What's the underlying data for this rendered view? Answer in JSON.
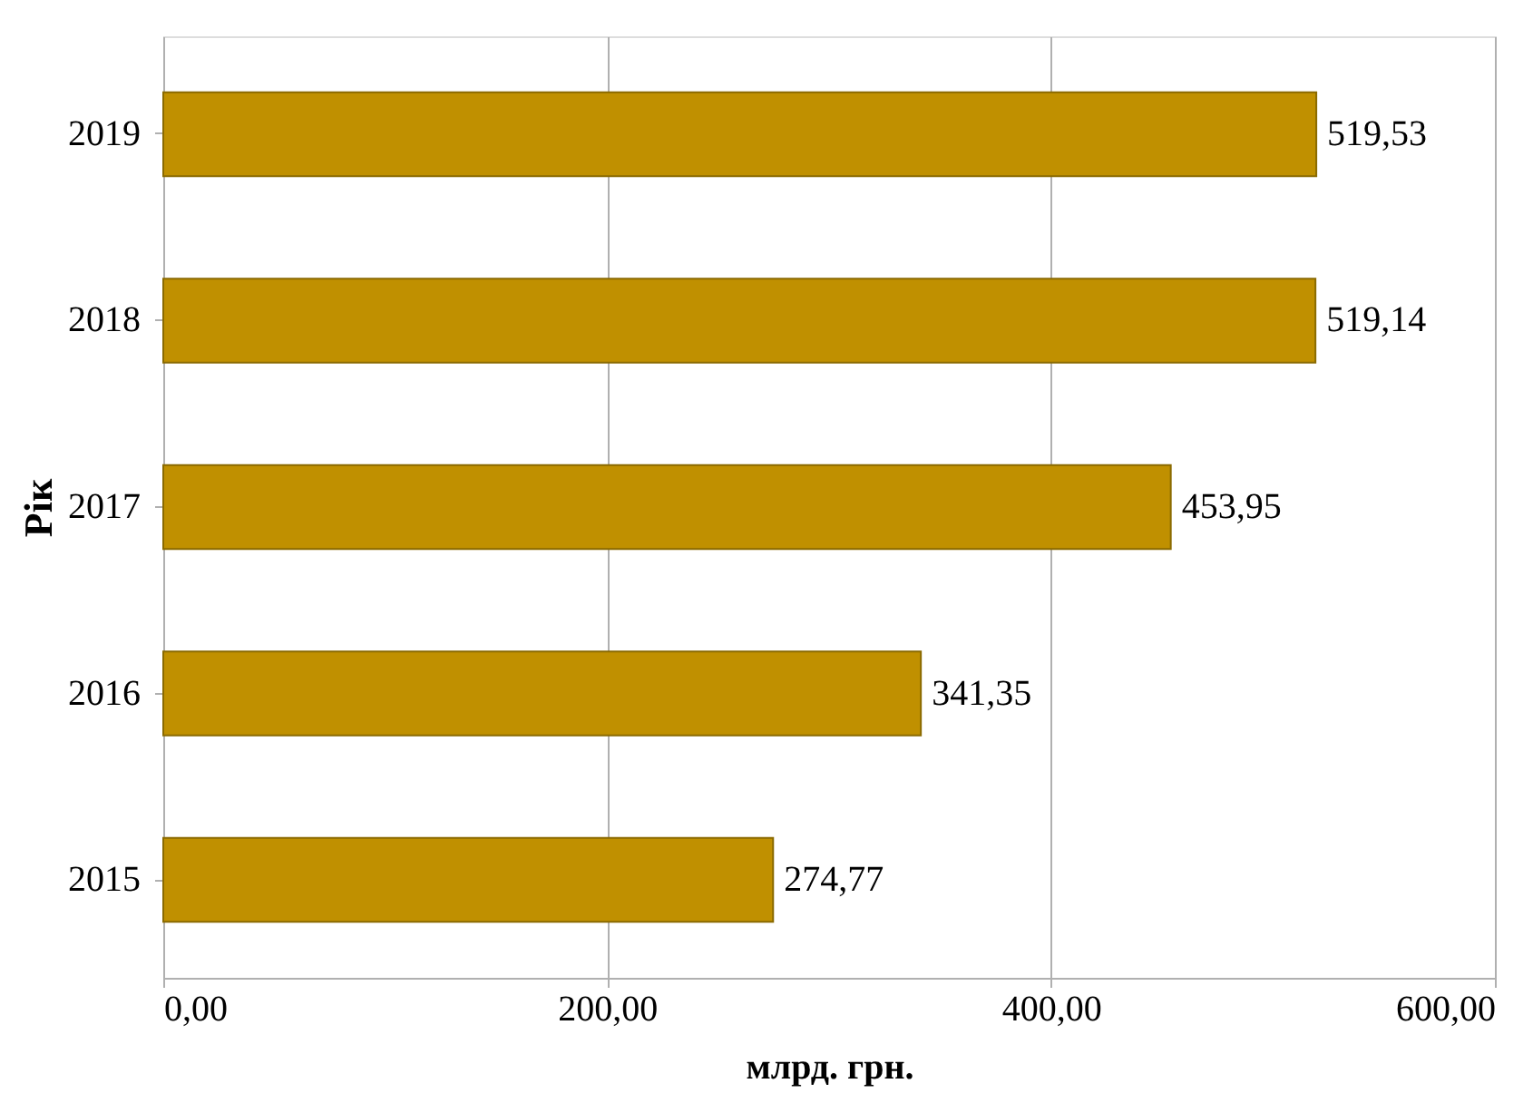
{
  "chart_data": {
    "type": "bar",
    "orientation": "horizontal",
    "xlabel": "млрд. грн.",
    "ylabel": "Рік",
    "categories": [
      "2019",
      "2018",
      "2017",
      "2016",
      "2015"
    ],
    "values": [
      519.53,
      519.14,
      453.95,
      341.35,
      274.77
    ],
    "value_labels": [
      "519,53",
      "519,14",
      "453,95",
      "341,35",
      "274,77"
    ],
    "color": "#c09000",
    "xlim": [
      0,
      600
    ],
    "xticks": [
      {
        "value": 0,
        "label": "0,00"
      },
      {
        "value": 200,
        "label": "200,00"
      },
      {
        "value": 400,
        "label": "400,00"
      },
      {
        "value": 600,
        "label": "600,00"
      }
    ],
    "grid": "x"
  }
}
